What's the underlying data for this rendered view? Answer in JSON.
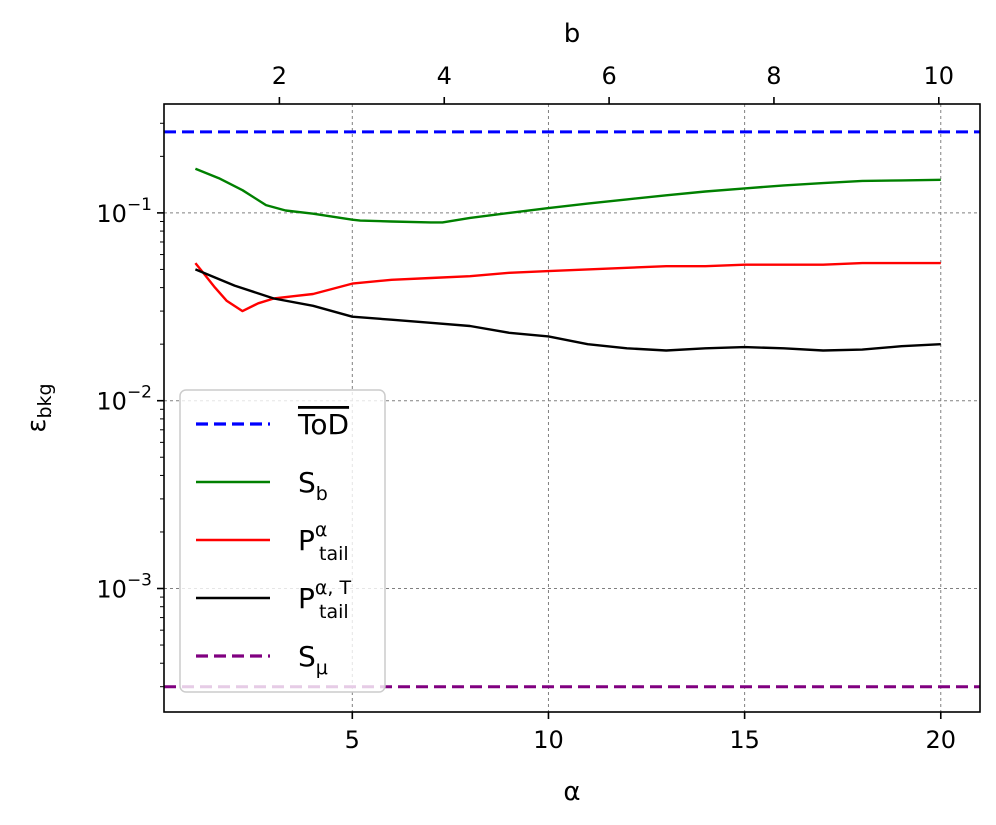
{
  "chart_data": {
    "type": "line",
    "xlabel": "α",
    "x2label": "b",
    "ylabel": "ε",
    "ylabel_sub": "bkg",
    "yscale": "log",
    "xlim": [
      0.2,
      21.0
    ],
    "ylim": [
      0.00022,
      0.38
    ],
    "x2lim": [
      0.6,
      10.5
    ],
    "grid": true,
    "legend_position": "lower-left",
    "x_ticks": [
      5,
      10,
      15,
      20
    ],
    "x_tick_labels": [
      "5",
      "10",
      "15",
      "20"
    ],
    "x2_ticks": [
      2,
      4,
      6,
      8,
      10
    ],
    "x2_tick_labels": [
      "2",
      "4",
      "6",
      "8",
      "10"
    ],
    "y_ticks": [
      0.1,
      0.01,
      0.001
    ],
    "y_tick_labels": [
      {
        "base": "10",
        "exp": "−1"
      },
      {
        "base": "10",
        "exp": "−2"
      },
      {
        "base": "10",
        "exp": "−3"
      }
    ],
    "series": [
      {
        "name": "ToD",
        "overline": true,
        "color": "#0000ff",
        "dashed": true,
        "x": [
          0.2,
          21.0
        ],
        "y": [
          0.27,
          0.27
        ]
      },
      {
        "name": "S",
        "sub": "b",
        "color": "#008000",
        "dashed": false,
        "x": [
          1,
          1.6,
          2.2,
          2.8,
          3.3,
          4,
          5,
          5.2,
          6,
          7,
          7.3,
          8,
          9,
          10,
          11,
          12,
          13,
          14,
          15,
          16,
          17,
          18,
          19,
          20
        ],
        "y": [
          0.172,
          0.153,
          0.132,
          0.11,
          0.103,
          0.099,
          0.092,
          0.091,
          0.09,
          0.089,
          0.089,
          0.094,
          0.1,
          0.106,
          0.112,
          0.118,
          0.124,
          0.13,
          0.135,
          0.14,
          0.144,
          0.148,
          0.149,
          0.15
        ]
      },
      {
        "name": "P",
        "sub": "tail",
        "sup": "α",
        "color": "#ff0000",
        "dashed": false,
        "x": [
          1,
          1.2,
          1.5,
          1.8,
          2.2,
          2.6,
          3,
          3.5,
          4,
          5,
          6,
          7,
          8,
          9,
          10,
          11,
          12,
          13,
          14,
          15,
          16,
          17,
          18,
          19,
          20
        ],
        "y": [
          0.054,
          0.048,
          0.04,
          0.034,
          0.03,
          0.033,
          0.035,
          0.036,
          0.037,
          0.042,
          0.044,
          0.045,
          0.046,
          0.048,
          0.049,
          0.05,
          0.051,
          0.052,
          0.052,
          0.053,
          0.053,
          0.053,
          0.054,
          0.054,
          0.054
        ]
      },
      {
        "name": "P",
        "sub": "tail",
        "sup": "α, T",
        "color": "#000000",
        "dashed": false,
        "x": [
          1,
          2,
          3,
          4,
          5,
          6,
          7,
          8,
          9,
          10,
          11,
          12,
          13,
          14,
          15,
          16,
          17,
          18,
          19,
          20
        ],
        "y": [
          0.05,
          0.041,
          0.035,
          0.032,
          0.028,
          0.027,
          0.026,
          0.025,
          0.023,
          0.022,
          0.02,
          0.019,
          0.0185,
          0.019,
          0.0193,
          0.019,
          0.0185,
          0.0187,
          0.0195,
          0.02
        ]
      },
      {
        "name": "S",
        "sub": "μ",
        "color": "#800080",
        "dashed": true,
        "x": [
          0.2,
          21.0
        ],
        "y": [
          0.0003,
          0.0003
        ]
      }
    ]
  }
}
